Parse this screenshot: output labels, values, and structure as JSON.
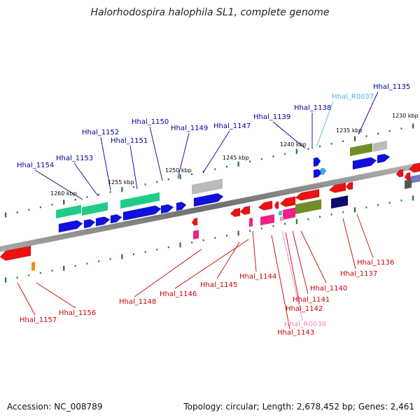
{
  "title": "Halorhodospira halophila SL1, complete genome",
  "footer": {
    "accession": "Accession: NC_008789",
    "topology": "Topology: circular; Length: 2,678,452 bp; Genes: 2,461"
  },
  "colors": {
    "backbone": "#888888",
    "ticks": "#1c7a1c",
    "label_top": "#000099",
    "label_bottom": "#cc0000",
    "label_rna_top": "#44bbdd",
    "label_rna_bottom": "#ee88bb"
  },
  "scale_labels": [
    "1230 kbp",
    "1235 kbp",
    "1240 kbp",
    "1245 kbp",
    "1250 kbp",
    "1255 kbp",
    "1260 kbp"
  ],
  "gene_labels_top": [
    "Hhal_1135",
    "Hhal_R0037",
    "Hhal_1138",
    "Hhal_1139",
    "Hhal_1147",
    "Hhal_1149",
    "Hhal_1150",
    "Hhal_1151",
    "Hhal_1152",
    "Hhal_1153",
    "Hhal_1154"
  ],
  "gene_labels_bottom": [
    "Hhal_1136",
    "Hhal_1137",
    "Hhal_1140",
    "Hhal_1141",
    "Hhal_1142",
    "Hhal_R0038",
    "Hhal_1143",
    "Hhal_1144",
    "Hhal_1145",
    "Hhal_1146",
    "Hhal_1148",
    "Hhal_1156",
    "Hhal_1157"
  ]
}
